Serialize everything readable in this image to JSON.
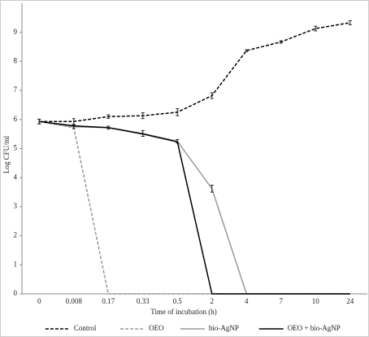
{
  "chart_data": {
    "type": "line",
    "x_label": "Time of incubation (h)",
    "y_label": "Log CFU/ml",
    "categories": [
      "0",
      "0.008",
      "0.17",
      "0.33",
      "0.5",
      "2",
      "4",
      "7",
      "10",
      "24"
    ],
    "ylim": [
      0,
      10
    ],
    "yticks": [
      0,
      1,
      2,
      3,
      4,
      5,
      6,
      7,
      8,
      9
    ],
    "legend": "bottom",
    "series": [
      {
        "name": "Control",
        "color": "#000000",
        "style": "dashed",
        "values": [
          5.93,
          5.93,
          6.1,
          6.13,
          6.25,
          6.82,
          8.37,
          8.67,
          9.13,
          9.33
        ],
        "errors": [
          0.08,
          0.1,
          0.06,
          0.1,
          0.12,
          0.1,
          0.03,
          0.04,
          0.08,
          0.07
        ]
      },
      {
        "name": "OEO",
        "color": "#999999",
        "style": "dashed",
        "values": [
          5.93,
          5.72,
          0,
          0,
          0,
          0,
          0,
          0,
          0,
          0
        ]
      },
      {
        "name": "bio-AgNP",
        "color": "#999999",
        "style": "solid",
        "values": [
          5.93,
          5.75,
          5.72,
          5.52,
          5.25,
          3.62,
          0,
          0,
          0,
          0
        ],
        "errors": [
          0.08,
          0.06,
          0.05,
          0.1,
          0.06,
          0.12,
          0,
          0,
          0,
          0
        ]
      },
      {
        "name": "OEO + bio-AgNP",
        "color": "#000000",
        "style": "solid",
        "values": [
          5.93,
          5.78,
          5.72,
          5.5,
          5.23,
          0,
          0,
          0,
          0,
          0
        ]
      }
    ]
  }
}
